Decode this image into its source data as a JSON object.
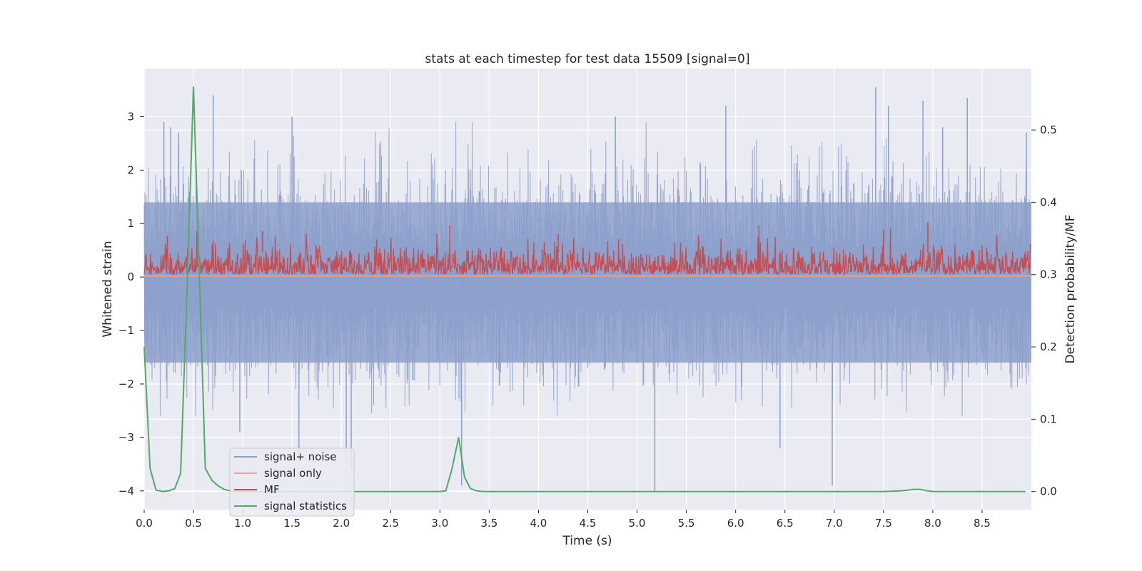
{
  "chart_data": {
    "type": "line",
    "title": "stats at each timestep for test data 15509 [signal=0]",
    "xlabel": "Time (s)",
    "ylabel": "Whitened strain",
    "y2label": "Detection probability/MF",
    "xlim": [
      0.0,
      9.0
    ],
    "ylim": [
      -4.35,
      3.9
    ],
    "y2lim": [
      -0.025,
      0.585
    ],
    "xticks": [
      "0.0",
      "0.5",
      "1.0",
      "1.5",
      "2.0",
      "2.5",
      "3.0",
      "3.5",
      "4.0",
      "4.5",
      "5.0",
      "5.5",
      "6.0",
      "6.5",
      "7.0",
      "7.5",
      "8.0",
      "8.5"
    ],
    "yticks": [
      "3",
      "2",
      "1",
      "0",
      "−1",
      "−2",
      "−3",
      "−4"
    ],
    "y2ticks": [
      "0.5",
      "0.4",
      "0.3",
      "0.2",
      "0.1",
      "0.0"
    ],
    "grid": true,
    "legend": {
      "location": "lower-left",
      "entries": [
        "signal+ noise",
        "signal only",
        "MF",
        "signal statistics"
      ]
    },
    "colors": {
      "signal_noise": "#8da0cb",
      "signal_only": "#e9a48a",
      "mf": "#c44e52",
      "signal_statistics": "#55a868",
      "plot_background": "#eaeaf2",
      "grid": "#ffffff"
    },
    "series": [
      {
        "name": "signal+ noise",
        "axis": "left",
        "description_range": [
          -4.0,
          3.55
        ],
        "typical_range": [
          -1.6,
          1.4
        ],
        "spike_times": [
          0.2,
          0.27,
          0.35,
          0.7,
          0.97,
          1.5,
          1.57,
          2.05,
          2.1,
          3.22,
          4.78,
          5.18,
          5.9,
          6.45,
          6.98,
          7.42,
          7.55,
          7.9,
          8.1,
          8.35,
          8.95
        ],
        "spike_values": [
          2.9,
          2.8,
          2.7,
          3.4,
          -2.9,
          3.0,
          -3.4,
          -3.5,
          -3.6,
          -3.9,
          3.0,
          -4.0,
          3.2,
          -3.2,
          -3.9,
          3.55,
          3.2,
          3.3,
          2.8,
          3.35,
          2.7
        ]
      },
      {
        "name": "signal only",
        "axis": "left",
        "x": [
          0.0,
          9.0
        ],
        "y": [
          0.02,
          0.02
        ]
      },
      {
        "name": "MF",
        "axis": "right",
        "typical_range": [
          0.3,
          0.355
        ],
        "peak_times": [
          1.2,
          3.1,
          4.2,
          7.5,
          7.95
        ],
        "peak_values": [
          0.36,
          0.368,
          0.356,
          0.362,
          0.372
        ]
      },
      {
        "name": "signal statistics",
        "axis": "right",
        "x": [
          0.0,
          0.06,
          0.12,
          0.19,
          0.25,
          0.31,
          0.37,
          0.44,
          0.5,
          0.56,
          0.62,
          0.69,
          0.75,
          0.81,
          0.87,
          0.94,
          1.0,
          1.5,
          2.0,
          2.5,
          3.0,
          3.06,
          3.12,
          3.19,
          3.25,
          3.31,
          3.37,
          3.44,
          3.5,
          4.0,
          5.0,
          6.0,
          7.0,
          7.5,
          7.69,
          7.75,
          7.81,
          7.87,
          7.94,
          8.0,
          8.5,
          8.94
        ],
        "y": [
          0.2,
          0.032,
          0.002,
          0.0,
          0.001,
          0.004,
          0.025,
          0.3,
          0.56,
          0.3,
          0.032,
          0.015,
          0.008,
          0.003,
          0.001,
          0.0,
          0.0,
          0.0,
          0.0,
          0.0,
          0.0,
          0.001,
          0.03,
          0.075,
          0.02,
          0.004,
          0.001,
          0.0,
          0.0,
          0.0,
          0.0,
          0.0,
          0.0,
          0.0,
          0.001,
          0.002,
          0.003,
          0.003,
          0.001,
          0.0,
          0.0,
          0.0
        ]
      }
    ]
  }
}
